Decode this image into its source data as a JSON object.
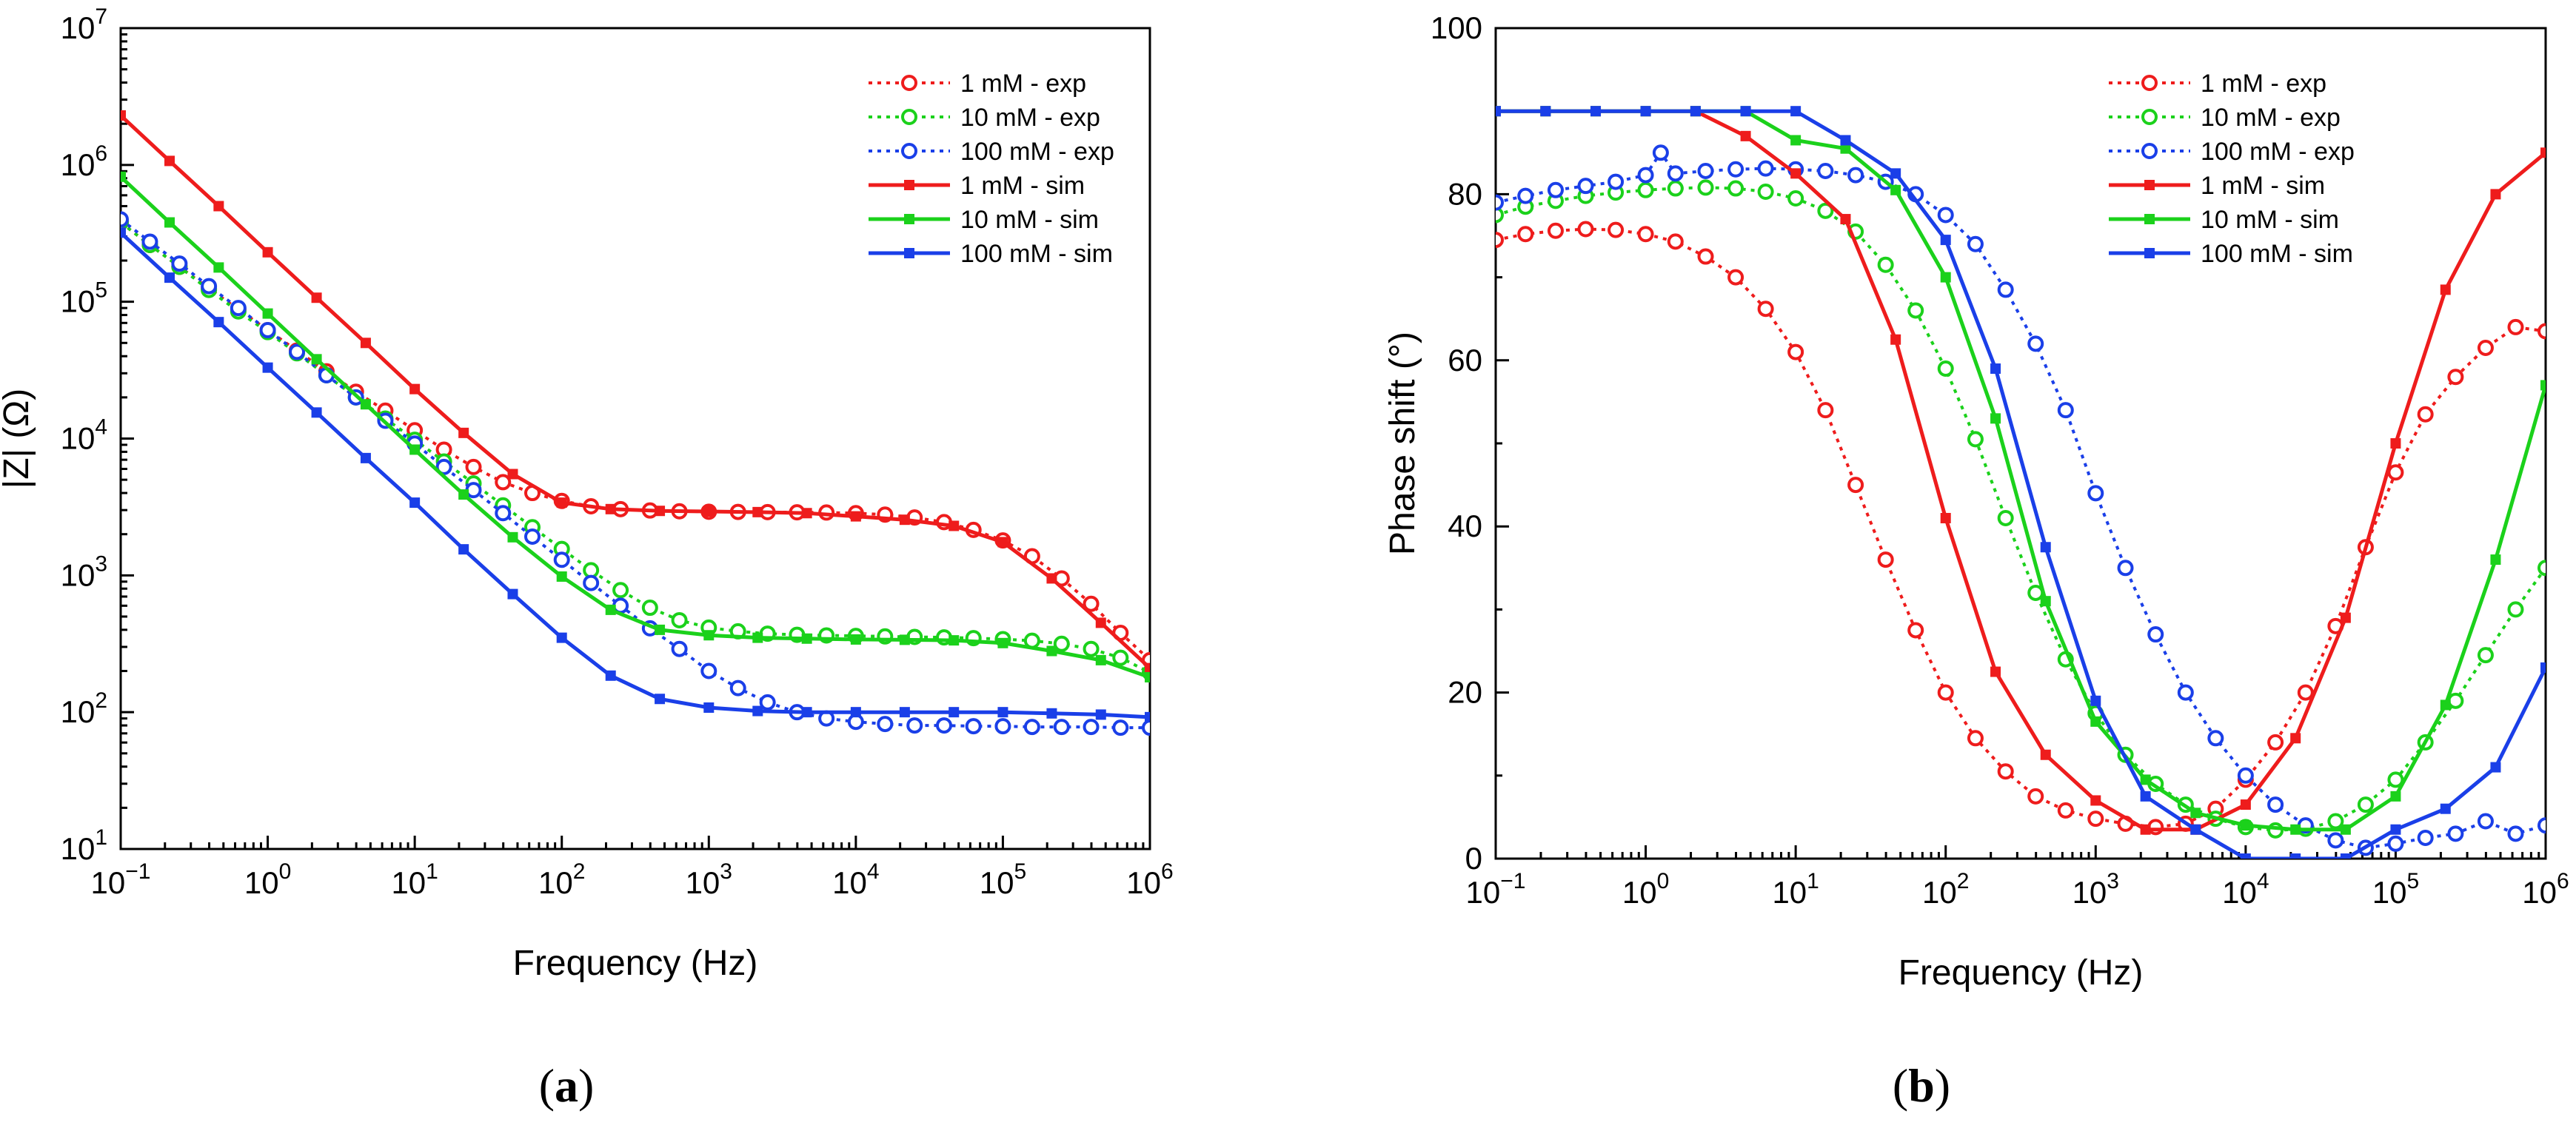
{
  "colors": {
    "red": "#ee1c1c",
    "green": "#1bd11b",
    "blue": "#1a3fe8"
  },
  "panel_labels": [
    {
      "open": "(",
      "letter": "a",
      "close": ")"
    },
    {
      "open": "(",
      "letter": "b",
      "close": ")"
    }
  ],
  "chart_data": [
    {
      "type": "line",
      "xscale": "log",
      "yscale": "log",
      "xlim": [
        0.1,
        1000000
      ],
      "ylim": [
        10,
        10000000
      ],
      "xlabel": "Frequency (Hz)",
      "ylabel": "|Z| (Ω)",
      "x_ticks": [
        {
          "base": "10",
          "exp": "−1",
          "value": 0.1
        },
        {
          "base": "10",
          "exp": "0",
          "value": 1
        },
        {
          "base": "10",
          "exp": "1",
          "value": 10
        },
        {
          "base": "10",
          "exp": "2",
          "value": 100
        },
        {
          "base": "10",
          "exp": "3",
          "value": 1000
        },
        {
          "base": "10",
          "exp": "4",
          "value": 10000
        },
        {
          "base": "10",
          "exp": "5",
          "value": 100000
        },
        {
          "base": "10",
          "exp": "6",
          "value": 1000000
        }
      ],
      "y_ticks": [
        {
          "base": "10",
          "exp": "1",
          "value": 10
        },
        {
          "base": "10",
          "exp": "2",
          "value": 100
        },
        {
          "base": "10",
          "exp": "3",
          "value": 1000
        },
        {
          "base": "10",
          "exp": "4",
          "value": 10000
        },
        {
          "base": "10",
          "exp": "5",
          "value": 100000
        },
        {
          "base": "10",
          "exp": "6",
          "value": 1000000
        },
        {
          "base": "10",
          "exp": "7",
          "value": 10000000
        }
      ],
      "legend_position": "top-right",
      "series": [
        {
          "name": "1 mM - exp",
          "color": "red",
          "style": "exp",
          "x": [
            0.1,
            0.158,
            0.251,
            0.398,
            0.631,
            1,
            1.58,
            2.51,
            3.98,
            6.31,
            10,
            15.8,
            25.1,
            39.8,
            63.1,
            100,
            158,
            251,
            398,
            631,
            1000,
            1580,
            2510,
            3980,
            6310,
            10000,
            15800,
            25100,
            39800,
            63100,
            100000,
            158000,
            251000,
            398000,
            631000,
            1000000
          ],
          "y": [
            380000,
            260000,
            180000,
            125000,
            88000,
            62000,
            44000,
            31000,
            22000,
            16000,
            11500,
            8300,
            6200,
            4800,
            4000,
            3500,
            3200,
            3050,
            2980,
            2940,
            2920,
            2910,
            2900,
            2890,
            2880,
            2850,
            2780,
            2650,
            2450,
            2150,
            1800,
            1380,
            950,
            620,
            380,
            240
          ]
        },
        {
          "name": "10 mM - exp",
          "color": "green",
          "style": "exp",
          "x": [
            0.1,
            0.158,
            0.251,
            0.398,
            0.631,
            1,
            1.58,
            2.51,
            3.98,
            6.31,
            10,
            15.8,
            25.1,
            39.8,
            63.1,
            100,
            158,
            251,
            398,
            631,
            1000,
            1580,
            2510,
            3980,
            6310,
            10000,
            15800,
            25100,
            39800,
            63100,
            100000,
            158000,
            251000,
            398000,
            631000,
            1000000
          ],
          "y": [
            380000,
            260000,
            180000,
            122000,
            85000,
            60000,
            42000,
            29000,
            20000,
            14000,
            9800,
            6800,
            4700,
            3250,
            2250,
            1560,
            1090,
            780,
            580,
            470,
            415,
            390,
            375,
            368,
            364,
            361,
            358,
            355,
            352,
            348,
            342,
            333,
            316,
            290,
            250,
            195
          ]
        },
        {
          "name": "100 mM - exp",
          "color": "blue",
          "style": "exp",
          "x": [
            0.1,
            0.158,
            0.251,
            0.398,
            0.631,
            1,
            1.58,
            2.51,
            3.98,
            6.31,
            10,
            15.8,
            25.1,
            39.8,
            63.1,
            100,
            158,
            251,
            398,
            631,
            1000,
            1580,
            2510,
            3980,
            6310,
            10000,
            15800,
            25100,
            39800,
            63100,
            100000,
            158000,
            251000,
            398000,
            631000,
            1000000
          ],
          "y": [
            400000,
            275000,
            190000,
            130000,
            90000,
            62000,
            43000,
            29000,
            20000,
            13500,
            9200,
            6200,
            4200,
            2850,
            1920,
            1300,
            880,
            600,
            410,
            290,
            200,
            150,
            118,
            100,
            90,
            85,
            82,
            80,
            80,
            79,
            79,
            78,
            78,
            78,
            77,
            77
          ]
        },
        {
          "name": "1 mM - sim",
          "color": "red",
          "style": "sim",
          "x": [
            0.1,
            0.215,
            0.464,
            1,
            2.15,
            4.64,
            10,
            21.5,
            46.4,
            100,
            215,
            464,
            1000,
            2150,
            4640,
            10000,
            21500,
            46400,
            100000,
            215000,
            464000,
            1000000
          ],
          "y": [
            2300000,
            1070000,
            500000,
            230000,
            107000,
            50000,
            23000,
            11000,
            5500,
            3400,
            3050,
            2960,
            2930,
            2900,
            2850,
            2700,
            2550,
            2300,
            1750,
            950,
            450,
            210
          ]
        },
        {
          "name": "10 mM - sim",
          "color": "green",
          "style": "sim",
          "x": [
            0.1,
            0.215,
            0.464,
            1,
            2.15,
            4.64,
            10,
            21.5,
            46.4,
            100,
            215,
            464,
            1000,
            2150,
            4640,
            10000,
            21500,
            46400,
            100000,
            215000,
            464000,
            1000000
          ],
          "y": [
            820000,
            380000,
            178000,
            82000,
            38000,
            17800,
            8300,
            3900,
            1900,
            980,
            560,
            400,
            365,
            350,
            345,
            340,
            338,
            335,
            320,
            280,
            240,
            180
          ]
        },
        {
          "name": "100 mM - sim",
          "color": "blue",
          "style": "sim",
          "x": [
            0.1,
            0.215,
            0.464,
            1,
            2.15,
            4.64,
            10,
            21.5,
            46.4,
            100,
            215,
            464,
            1000,
            2150,
            4640,
            10000,
            21500,
            46400,
            100000,
            215000,
            464000,
            1000000
          ],
          "y": [
            320000,
            150000,
            71000,
            33000,
            15500,
            7200,
            3400,
            1550,
            730,
            350,
            185,
            125,
            108,
            102,
            100,
            100,
            100,
            100,
            100,
            98,
            96,
            92
          ]
        }
      ]
    },
    {
      "type": "line",
      "xscale": "log",
      "yscale": "linear",
      "xlim": [
        0.1,
        1000000
      ],
      "ylim": [
        0,
        100
      ],
      "xlabel": "Frequency (Hz)",
      "ylabel": "Phase shift (°)",
      "x_ticks": [
        {
          "base": "10",
          "exp": "−1",
          "value": 0.1
        },
        {
          "base": "10",
          "exp": "0",
          "value": 1
        },
        {
          "base": "10",
          "exp": "1",
          "value": 10
        },
        {
          "base": "10",
          "exp": "2",
          "value": 100
        },
        {
          "base": "10",
          "exp": "3",
          "value": 1000
        },
        {
          "base": "10",
          "exp": "4",
          "value": 10000
        },
        {
          "base": "10",
          "exp": "5",
          "value": 100000
        },
        {
          "base": "10",
          "exp": "6",
          "value": 1000000
        }
      ],
      "y_ticks": [
        {
          "label": "0",
          "value": 0
        },
        {
          "label": "20",
          "value": 20
        },
        {
          "label": "40",
          "value": 40
        },
        {
          "label": "60",
          "value": 60
        },
        {
          "label": "80",
          "value": 80
        },
        {
          "label": "100",
          "value": 100
        }
      ],
      "legend_position": "top-right",
      "series": [
        {
          "name": "1 mM - exp",
          "color": "red",
          "style": "exp",
          "x": [
            0.1,
            0.158,
            0.251,
            0.398,
            0.631,
            1,
            1.58,
            2.51,
            3.98,
            6.31,
            10,
            15.8,
            25.1,
            39.8,
            63.1,
            100,
            158,
            251,
            398,
            631,
            1000,
            1580,
            2510,
            3980,
            6310,
            10000,
            15800,
            25100,
            39800,
            63100,
            100000,
            158000,
            251000,
            398000,
            631000,
            1000000
          ],
          "y": [
            74.5,
            75.2,
            75.6,
            75.8,
            75.7,
            75.2,
            74.3,
            72.5,
            70,
            66.2,
            61,
            54,
            45,
            36,
            27.5,
            20,
            14.5,
            10.5,
            7.5,
            5.8,
            4.8,
            4.2,
            3.8,
            4.2,
            6,
            9.5,
            14,
            20,
            28,
            37.5,
            46.5,
            53.5,
            58,
            61.5,
            64,
            63.5
          ]
        },
        {
          "name": "10 mM - exp",
          "color": "green",
          "style": "exp",
          "x": [
            0.1,
            0.158,
            0.251,
            0.398,
            0.631,
            1,
            1.58,
            2.51,
            3.98,
            6.31,
            10,
            15.8,
            25.1,
            39.8,
            63.1,
            100,
            158,
            251,
            398,
            631,
            1000,
            1580,
            2510,
            3980,
            6310,
            10000,
            15800,
            25100,
            39800,
            63100,
            100000,
            158000,
            251000,
            398000,
            631000,
            1000000
          ],
          "y": [
            77.5,
            78.5,
            79.2,
            79.8,
            80.2,
            80.5,
            80.7,
            80.8,
            80.7,
            80.3,
            79.5,
            78,
            75.5,
            71.5,
            66,
            59,
            50.5,
            41,
            32,
            24,
            17.5,
            12.5,
            9,
            6.5,
            4.8,
            3.8,
            3.4,
            3.6,
            4.5,
            6.5,
            9.5,
            14,
            19,
            24.5,
            30,
            35
          ]
        },
        {
          "name": "100 mM - exp",
          "color": "blue",
          "style": "exp",
          "x": [
            0.1,
            0.158,
            0.251,
            0.398,
            0.631,
            1,
            1.26,
            1.58,
            2.51,
            3.98,
            6.31,
            10,
            15.8,
            25.1,
            39.8,
            63.1,
            100,
            158,
            251,
            398,
            631,
            1000,
            1580,
            2510,
            3980,
            6310,
            10000,
            15800,
            25100,
            39800,
            63100,
            100000,
            158000,
            251000,
            398000,
            631000,
            1000000
          ],
          "y": [
            79,
            79.8,
            80.5,
            81,
            81.5,
            82.3,
            85,
            82.5,
            82.8,
            83,
            83.1,
            83,
            82.8,
            82.3,
            81.5,
            80,
            77.5,
            74,
            68.5,
            62,
            54,
            44,
            35,
            27,
            20,
            14.5,
            10,
            6.5,
            4,
            2.2,
            1.3,
            1.8,
            2.5,
            3,
            4.5,
            3,
            4
          ]
        },
        {
          "name": "1 mM - sim",
          "color": "red",
          "style": "sim",
          "x": [
            0.1,
            0.215,
            0.464,
            1,
            2.15,
            4.64,
            10,
            21.5,
            46.4,
            100,
            215,
            464,
            1000,
            2150,
            4640,
            10000,
            21500,
            46400,
            100000,
            215000,
            464000,
            1000000
          ],
          "y": [
            90,
            90,
            90,
            90,
            90,
            87,
            82.5,
            77,
            62.5,
            41,
            22.5,
            12.5,
            7,
            3.5,
            3.5,
            6.5,
            14.5,
            29,
            50,
            68.5,
            80,
            85
          ]
        },
        {
          "name": "10 mM - sim",
          "color": "green",
          "style": "sim",
          "x": [
            0.1,
            0.215,
            0.464,
            1,
            2.15,
            4.64,
            10,
            21.5,
            46.4,
            100,
            215,
            464,
            1000,
            2150,
            4640,
            10000,
            21500,
            46400,
            100000,
            215000,
            464000,
            1000000
          ],
          "y": [
            90,
            90,
            90,
            90,
            90,
            90,
            86.5,
            85.5,
            80.5,
            70,
            53,
            31,
            16.5,
            9.5,
            5.5,
            4,
            3.5,
            3.5,
            7.5,
            18.5,
            36,
            57
          ]
        },
        {
          "name": "100 mM - sim",
          "color": "blue",
          "style": "sim",
          "x": [
            0.1,
            0.215,
            0.464,
            1,
            2.15,
            4.64,
            10,
            21.5,
            46.4,
            100,
            215,
            464,
            1000,
            2150,
            4640,
            10000,
            21500,
            46400,
            100000,
            215000,
            464000,
            1000000
          ],
          "y": [
            90,
            90,
            90,
            90,
            90,
            90,
            90,
            86.5,
            82.5,
            74.5,
            59,
            37.5,
            19,
            7.5,
            3.5,
            0,
            0,
            0,
            3.5,
            6,
            11,
            23
          ]
        }
      ]
    }
  ]
}
